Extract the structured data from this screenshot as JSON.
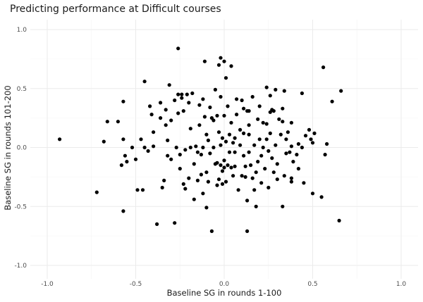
{
  "chart_data": {
    "type": "scatter",
    "title": "Predicting performance at Difficult courses",
    "xlabel": "Baseline SG in rounds 1-100",
    "ylabel": "Baseline SG in rounds 101-200",
    "xlim": [
      -1.0,
      1.0
    ],
    "ylim": [
      -1.0,
      1.0
    ],
    "x_ticks": [
      -1.0,
      -0.5,
      0.0,
      0.5,
      1.0
    ],
    "y_ticks": [
      -1.0,
      -0.5,
      0.0,
      0.5,
      1.0
    ],
    "x_tick_labels": [
      "-1.0",
      "-0.5",
      "0.0",
      "0.5",
      "1.0"
    ],
    "y_tick_labels": [
      "-1.0",
      "-0.5",
      "0.0",
      "0.5",
      "1.0"
    ],
    "grid": true,
    "point_color": "#000000",
    "points": [
      [
        -0.93,
        0.07
      ],
      [
        -0.72,
        -0.38
      ],
      [
        -0.68,
        0.05
      ],
      [
        -0.66,
        0.22
      ],
      [
        -0.6,
        0.22
      ],
      [
        -0.58,
        -0.15
      ],
      [
        -0.57,
        0.39
      ],
      [
        -0.57,
        0.07
      ],
      [
        -0.56,
        -0.07
      ],
      [
        -0.57,
        -0.54
      ],
      [
        -0.55,
        -0.12
      ],
      [
        -0.52,
        0.0
      ],
      [
        -0.5,
        -0.1
      ],
      [
        -0.49,
        -0.36
      ],
      [
        -0.47,
        0.07
      ],
      [
        -0.46,
        -0.36
      ],
      [
        -0.45,
        0.56
      ],
      [
        -0.45,
        0.0
      ],
      [
        -0.43,
        -0.03
      ],
      [
        -0.42,
        0.35
      ],
      [
        -0.41,
        0.28
      ],
      [
        -0.4,
        0.13
      ],
      [
        -0.4,
        0.01
      ],
      [
        -0.38,
        -0.65
      ],
      [
        -0.36,
        0.38
      ],
      [
        -0.36,
        0.25
      ],
      [
        -0.35,
        -0.34
      ],
      [
        -0.34,
        -0.28
      ],
      [
        -0.33,
        0.19
      ],
      [
        -0.33,
        0.32
      ],
      [
        -0.32,
        0.06
      ],
      [
        -0.32,
        -0.07
      ],
      [
        -0.31,
        0.53
      ],
      [
        -0.3,
        0.23
      ],
      [
        -0.3,
        -0.1
      ],
      [
        -0.28,
        -0.64
      ],
      [
        -0.28,
        0.4
      ],
      [
        -0.27,
        0.0
      ],
      [
        -0.26,
        0.84
      ],
      [
        -0.26,
        0.45
      ],
      [
        -0.26,
        0.29
      ],
      [
        -0.25,
        -0.06
      ],
      [
        -0.25,
        -0.18
      ],
      [
        -0.24,
        0.42
      ],
      [
        -0.24,
        0.45
      ],
      [
        -0.23,
        -0.31
      ],
      [
        -0.23,
        0.31
      ],
      [
        -0.22,
        -0.02
      ],
      [
        -0.22,
        -0.35
      ],
      [
        -0.21,
        0.45
      ],
      [
        -0.2,
        0.38
      ],
      [
        -0.2,
        -0.26
      ],
      [
        -0.19,
        0.0
      ],
      [
        -0.19,
        0.16
      ],
      [
        -0.18,
        0.46
      ],
      [
        -0.17,
        -0.14
      ],
      [
        -0.17,
        -0.44
      ],
      [
        -0.16,
        0.01
      ],
      [
        -0.15,
        -0.04
      ],
      [
        -0.15,
        -0.28
      ],
      [
        -0.14,
        0.36
      ],
      [
        -0.14,
        0.19
      ],
      [
        -0.13,
        -0.06
      ],
      [
        -0.13,
        -0.23
      ],
      [
        -0.12,
        0.41
      ],
      [
        -0.12,
        0.0
      ],
      [
        -0.12,
        -0.39
      ],
      [
        -0.11,
        0.73
      ],
      [
        -0.11,
        0.26
      ],
      [
        -0.1,
        -0.21
      ],
      [
        -0.1,
        -0.51
      ],
      [
        -0.1,
        0.11
      ],
      [
        -0.09,
        0.06
      ],
      [
        -0.09,
        -0.29
      ],
      [
        -0.08,
        0.34
      ],
      [
        -0.08,
        -0.05
      ],
      [
        -0.07,
        0.25
      ],
      [
        -0.07,
        -0.71
      ],
      [
        -0.06,
        0.23
      ],
      [
        -0.06,
        0.0
      ],
      [
        -0.05,
        0.49
      ],
      [
        -0.05,
        -0.14
      ],
      [
        -0.04,
        0.27
      ],
      [
        -0.04,
        -0.13
      ],
      [
        -0.04,
        -0.32
      ],
      [
        -0.03,
        0.7
      ],
      [
        -0.03,
        0.13
      ],
      [
        -0.03,
        -0.27
      ],
      [
        -0.02,
        0.76
      ],
      [
        -0.02,
        0.43
      ],
      [
        -0.02,
        0.02
      ],
      [
        -0.02,
        -0.15
      ],
      [
        -0.01,
        0.08
      ],
      [
        -0.01,
        -0.2
      ],
      [
        -0.01,
        -0.31
      ],
      [
        0.0,
        0.73
      ],
      [
        0.0,
        0.27
      ],
      [
        0.0,
        -0.11
      ],
      [
        0.0,
        -0.17
      ],
      [
        0.01,
        0.59
      ],
      [
        0.01,
        0.05
      ],
      [
        0.01,
        -0.29
      ],
      [
        0.02,
        -0.15
      ],
      [
        0.02,
        0.35
      ],
      [
        0.03,
        0.11
      ],
      [
        0.03,
        -0.04
      ],
      [
        0.04,
        0.69
      ],
      [
        0.04,
        0.21
      ],
      [
        0.04,
        -0.17
      ],
      [
        0.05,
        0.04
      ],
      [
        0.05,
        -0.24
      ],
      [
        0.06,
        0.08
      ],
      [
        0.06,
        -0.04
      ],
      [
        0.06,
        -0.16
      ],
      [
        0.07,
        0.28
      ],
      [
        0.07,
        0.41
      ],
      [
        0.08,
        -0.36
      ],
      [
        0.09,
        0.02
      ],
      [
        0.09,
        0.15
      ],
      [
        0.1,
        -0.24
      ],
      [
        0.1,
        0.4
      ],
      [
        0.11,
        0.33
      ],
      [
        0.11,
        0.12
      ],
      [
        0.11,
        -0.07
      ],
      [
        0.12,
        -0.16
      ],
      [
        0.12,
        -0.25
      ],
      [
        0.13,
        0.31
      ],
      [
        0.13,
        -0.71
      ],
      [
        0.13,
        -0.45
      ],
      [
        0.14,
        0.19
      ],
      [
        0.14,
        0.31
      ],
      [
        0.14,
        0.11
      ],
      [
        0.14,
        -0.04
      ],
      [
        0.15,
        -0.15
      ],
      [
        0.16,
        -0.26
      ],
      [
        0.16,
        0.43
      ],
      [
        0.17,
        0.02
      ],
      [
        0.17,
        -0.36
      ],
      [
        0.18,
        -0.21
      ],
      [
        0.18,
        -0.5
      ],
      [
        0.19,
        0.24
      ],
      [
        0.19,
        -0.12
      ],
      [
        0.2,
        0.35
      ],
      [
        0.2,
        0.07
      ],
      [
        0.21,
        -0.07
      ],
      [
        0.21,
        -0.3
      ],
      [
        0.22,
        0.21
      ],
      [
        0.22,
        0.0
      ],
      [
        0.23,
        -0.18
      ],
      [
        0.24,
        0.51
      ],
      [
        0.24,
        0.2
      ],
      [
        0.24,
        0.07
      ],
      [
        0.25,
        -0.03
      ],
      [
        0.25,
        -0.34
      ],
      [
        0.26,
        0.44
      ],
      [
        0.26,
        0.3
      ],
      [
        0.26,
        0.12
      ],
      [
        0.27,
        0.32
      ],
      [
        0.27,
        -0.09
      ],
      [
        0.28,
        0.31
      ],
      [
        0.28,
        -0.21
      ],
      [
        0.29,
        0.49
      ],
      [
        0.29,
        0.02
      ],
      [
        0.3,
        -0.14
      ],
      [
        0.3,
        -0.27
      ],
      [
        0.31,
        0.24
      ],
      [
        0.32,
        0.11
      ],
      [
        0.33,
        0.33
      ],
      [
        0.33,
        0.22
      ],
      [
        0.33,
        -0.5
      ],
      [
        0.34,
        0.48
      ],
      [
        0.34,
        -0.24
      ],
      [
        0.35,
        0.07
      ],
      [
        0.35,
        -0.05
      ],
      [
        0.36,
        0.13
      ],
      [
        0.37,
        -0.04
      ],
      [
        0.38,
        0.01
      ],
      [
        0.38,
        0.21
      ],
      [
        0.38,
        -0.26
      ],
      [
        0.38,
        -0.29
      ],
      [
        0.39,
        -0.12
      ],
      [
        0.41,
        -0.06
      ],
      [
        0.42,
        0.03
      ],
      [
        0.42,
        -0.18
      ],
      [
        0.44,
        0.46
      ],
      [
        0.44,
        0.0
      ],
      [
        0.45,
        -0.3
      ],
      [
        0.46,
        0.1
      ],
      [
        0.48,
        0.15
      ],
      [
        0.49,
        0.07
      ],
      [
        0.5,
        0.04
      ],
      [
        0.5,
        -0.39
      ],
      [
        0.51,
        0.12
      ],
      [
        0.55,
        -0.42
      ],
      [
        0.56,
        0.68
      ],
      [
        0.57,
        -0.06
      ],
      [
        0.58,
        0.03
      ],
      [
        0.61,
        0.39
      ],
      [
        0.65,
        -0.62
      ],
      [
        0.66,
        0.48
      ]
    ]
  }
}
